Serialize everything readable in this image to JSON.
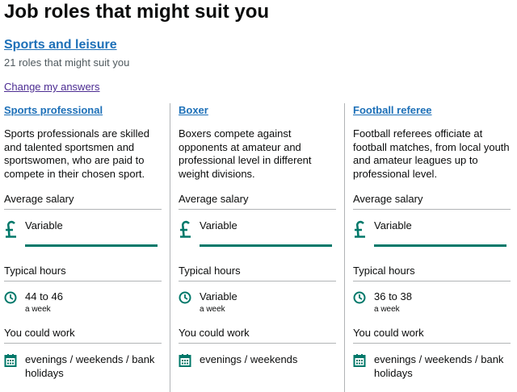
{
  "header": {
    "title": "Job roles that might suit you"
  },
  "section": {
    "title": "Sports and leisure",
    "subtitle": "21 roles that might suit you",
    "change_link": "Change my answers"
  },
  "cards": [
    {
      "title": "Sports professional",
      "description": "Sports professionals are skilled and talented sportsmen and sportswomen, who are paid to compete in their chosen sport.",
      "salary_label": "Average salary",
      "salary_value": "Variable",
      "hours_label": "Typical hours",
      "hours_value": "44 to 46",
      "hours_unit": "a week",
      "work_label": "You could work",
      "work_value": "evenings / weekends / bank holidays"
    },
    {
      "title": "Boxer",
      "description": "Boxers compete against opponents at amateur and professional level in different weight divisions.",
      "salary_label": "Average salary",
      "salary_value": "Variable",
      "hours_label": "Typical hours",
      "hours_value": "Variable",
      "hours_unit": "a week",
      "work_label": "You could work",
      "work_value": "evenings / weekends"
    },
    {
      "title": "Football referee",
      "description": "Football referees officiate at football matches, from local youth and amateur leagues up to professional level.",
      "salary_label": "Average salary",
      "salary_value": "Variable",
      "hours_label": "Typical hours",
      "hours_value": "36 to 38",
      "hours_unit": "a week",
      "work_label": "You could work",
      "work_value": "evenings / weekends / bank holidays"
    }
  ]
}
